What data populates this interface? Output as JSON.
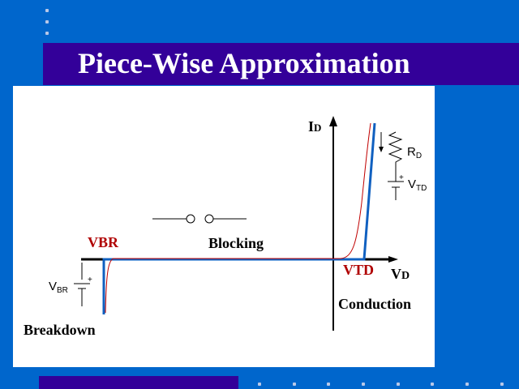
{
  "slide": {
    "title": "Piece-Wise Approximation",
    "colors": {
      "background": "#0066cc",
      "title_bar": "#330099",
      "ideal_curve": "#c00000",
      "approximation": "#1060c0"
    }
  },
  "diagram": {
    "y_axis": {
      "label": "I",
      "sub": "D"
    },
    "x_axis": {
      "label": "V",
      "sub": "D"
    },
    "vbr_label": "VBR",
    "vtd_label": "VTD",
    "regions": {
      "blocking": "Blocking",
      "conduction": "Conduction",
      "breakdown": "Breakdown"
    },
    "model_conduction": {
      "resistor": "R",
      "resistor_sub": "D",
      "source": "V",
      "source_sub": "TD"
    },
    "model_breakdown": {
      "source": "V",
      "source_sub": "BR"
    },
    "plus": "+"
  }
}
